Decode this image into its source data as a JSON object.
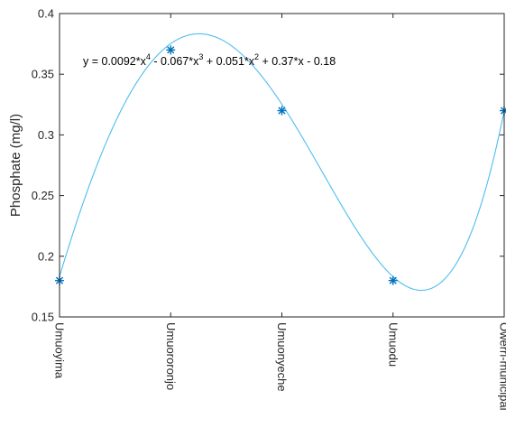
{
  "colors": {
    "fit_line": "#4dbeee",
    "marker": "#0072bd",
    "axis": "#262626",
    "background": "#ffffff"
  },
  "chart_data": {
    "type": "scatter",
    "title": "",
    "xlabel": "",
    "ylabel": "Phosphate (mg/l)",
    "categories": [
      "Umuoyima",
      "Umuororonjo",
      "Umuonyeche",
      "Umuodu",
      "Owerri-municipal"
    ],
    "x": [
      1,
      2,
      3,
      4,
      5
    ],
    "series": [
      {
        "values": [
          0.18,
          0.37,
          0.32,
          0.18,
          0.32
        ],
        "marker": "asterisk"
      }
    ],
    "fit": {
      "type": "polynomial",
      "degree": 4,
      "coefficients": [
        0.0092,
        -0.067,
        0.051,
        0.37,
        -0.18
      ],
      "annotation_parts": [
        {
          "text": "y = 0.0092*x"
        },
        {
          "text": "4",
          "sup": true
        },
        {
          "text": " - 0.067*x"
        },
        {
          "text": "3",
          "sup": true
        },
        {
          "text": " + 0.051*x"
        },
        {
          "text": "2",
          "sup": true
        },
        {
          "text": " + 0.37*x - 0.18"
        }
      ]
    },
    "xlim": [
      1,
      5
    ],
    "ylim": [
      0.15,
      0.4
    ],
    "yticks": [
      0.15,
      0.2,
      0.25,
      0.3,
      0.35,
      0.4
    ],
    "ytick_labels": [
      "0.15",
      "0.2",
      "0.25",
      "0.3",
      "0.35",
      "0.4"
    ],
    "grid": false,
    "box": true
  }
}
